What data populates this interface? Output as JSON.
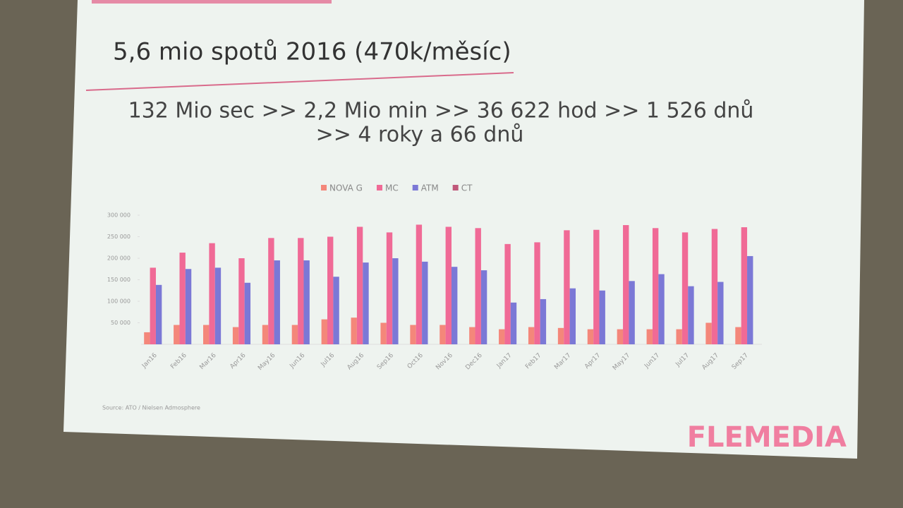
{
  "slide": {
    "title": "5,6 mio spotů 2016 (470k/měsíc)",
    "subtitle": [
      "132 Mio sec >> 2,2 Mio min >> 36 622 hod >> 1 526 dnů",
      ">> 4 roky a 66 dnů"
    ],
    "source": "Source: ATO / Nielsen Admosphere",
    "logo": "FLEMEDIA"
  },
  "chart_data": {
    "type": "bar",
    "categories": [
      "Jan16",
      "Feb16",
      "Mar16",
      "Apr16",
      "May16",
      "Jun16",
      "Jul16",
      "Aug16",
      "Sep16",
      "Oct16",
      "Nov16",
      "Dec16",
      "Jan17",
      "Feb17",
      "Mar17",
      "Apr17",
      "May17",
      "Jun17",
      "Jul17",
      "Aug17",
      "Sep17"
    ],
    "series": [
      {
        "name": "NOVA G",
        "color": "#f4877a",
        "values": [
          28000,
          45000,
          45000,
          40000,
          45000,
          45000,
          58000,
          62000,
          50000,
          45000,
          45000,
          40000,
          35000,
          40000,
          38000,
          35000,
          35000,
          35000,
          35000,
          50000,
          40000
        ]
      },
      {
        "name": "MC",
        "color": "#f06a96",
        "values": [
          178000,
          213000,
          235000,
          200000,
          247000,
          247000,
          250000,
          273000,
          260000,
          278000,
          273000,
          270000,
          233000,
          237000,
          265000,
          266000,
          277000,
          270000,
          260000,
          268000,
          272000
        ]
      },
      {
        "name": "ATM",
        "color": "#7b78d6",
        "values": [
          138000,
          175000,
          178000,
          143000,
          195000,
          195000,
          157000,
          190000,
          200000,
          192000,
          180000,
          172000,
          97000,
          105000,
          130000,
          125000,
          147000,
          163000,
          135000,
          145000,
          205000
        ]
      },
      {
        "name": "CT",
        "color": "#c0587a",
        "values": [
          null,
          null,
          null,
          null,
          null,
          null,
          null,
          null,
          null,
          null,
          null,
          null,
          null,
          null,
          null,
          null,
          null,
          null,
          null,
          null,
          null
        ]
      }
    ],
    "ylim": [
      0,
      300000
    ],
    "yticks": [
      {
        "value": 50000,
        "label": "50 000"
      },
      {
        "value": 100000,
        "label": "100 000"
      },
      {
        "value": 150000,
        "label": "150 000"
      },
      {
        "value": 200000,
        "label": "200 000"
      },
      {
        "value": 250000,
        "label": "250 000"
      },
      {
        "value": 300000,
        "label": "300 000"
      }
    ],
    "legend": "top"
  }
}
